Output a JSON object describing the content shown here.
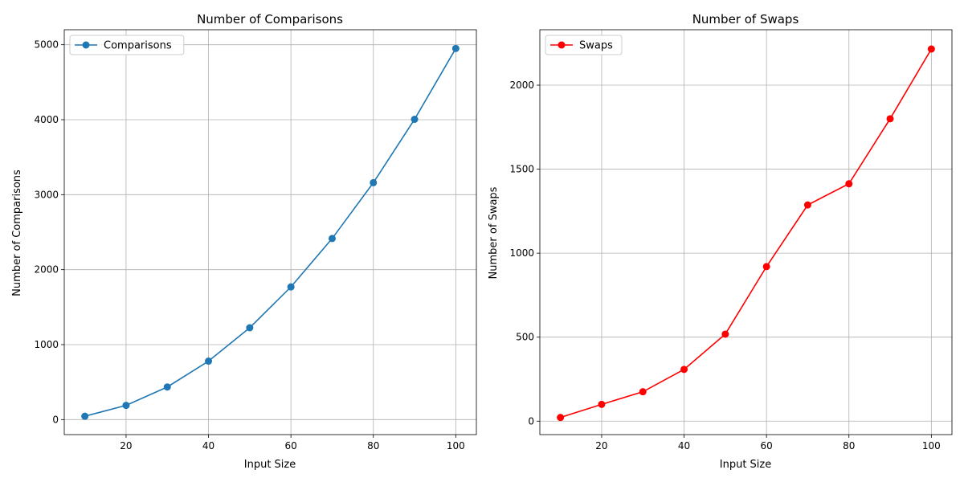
{
  "chart_data": [
    {
      "type": "line",
      "title": "Number of Comparisons",
      "xlabel": "Input Size",
      "ylabel": "Number of Comparisons",
      "xlim": [
        5,
        105
      ],
      "ylim": [
        -200,
        5200
      ],
      "xticks": [
        20,
        40,
        60,
        80,
        100
      ],
      "yticks": [
        0,
        1000,
        2000,
        3000,
        4000,
        5000
      ],
      "grid": true,
      "legend_position": "top-left",
      "series": [
        {
          "name": "Comparisons",
          "color": "#1f77b4",
          "marker": "circle",
          "x": [
            10,
            20,
            30,
            40,
            50,
            60,
            70,
            80,
            90,
            100
          ],
          "y": [
            45,
            190,
            435,
            780,
            1225,
            1770,
            2415,
            3160,
            4005,
            4950
          ]
        }
      ]
    },
    {
      "type": "line",
      "title": "Number of Swaps",
      "xlabel": "Input Size",
      "ylabel": "Number of Swaps",
      "xlim": [
        5,
        105
      ],
      "ylim": [
        -80,
        2330
      ],
      "xticks": [
        20,
        40,
        60,
        80,
        100
      ],
      "yticks": [
        0,
        500,
        1000,
        1500,
        2000
      ],
      "grid": true,
      "legend_position": "top-left",
      "series": [
        {
          "name": "Swaps",
          "color": "#ff0000",
          "marker": "circle",
          "x": [
            10,
            20,
            30,
            40,
            50,
            60,
            70,
            80,
            90,
            100
          ],
          "y": [
            22,
            100,
            175,
            308,
            518,
            920,
            1287,
            1413,
            1800,
            2215
          ]
        }
      ]
    }
  ]
}
